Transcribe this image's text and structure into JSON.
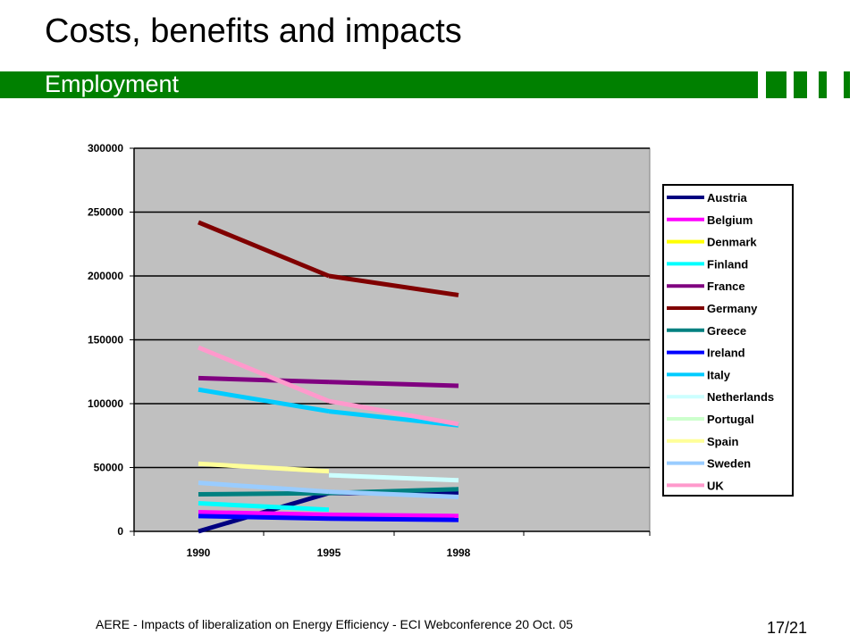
{
  "slide": {
    "title": "Costs, benefits and impacts",
    "subtitle": "Employment",
    "footer": "AERE - Impacts of liberalization on Energy Efficiency - ECI Webconference 20 Oct. 05",
    "page": "17/21",
    "accent_color": "#008000"
  },
  "chart_data": {
    "type": "line",
    "title": "",
    "xlabel": "",
    "ylabel": "",
    "categories": [
      "1990",
      "1995",
      "1998"
    ],
    "ylim": [
      0,
      300000
    ],
    "yticks": [
      "0",
      "50000",
      "100000",
      "150000",
      "200000",
      "250000",
      "300000"
    ],
    "grid": true,
    "legend_position": "right",
    "plot_background": "#c0c0c0",
    "series": [
      {
        "name": "Austria",
        "color": "#000080",
        "values": [
          0,
          30000,
          30000
        ]
      },
      {
        "name": "Belgium",
        "color": "#ff00ff",
        "values": [
          15000,
          13000,
          12000
        ]
      },
      {
        "name": "Denmark",
        "color": "#ffff00",
        "values": [
          null,
          null,
          null
        ]
      },
      {
        "name": "Finland",
        "color": "#00ffff",
        "values": [
          22000,
          17000,
          null
        ]
      },
      {
        "name": "France",
        "color": "#800080",
        "values": [
          120000,
          117000,
          114000
        ]
      },
      {
        "name": "Germany",
        "color": "#800000",
        "values": [
          242000,
          200000,
          185000
        ]
      },
      {
        "name": "Greece",
        "color": "#008080",
        "values": [
          29000,
          30000,
          33000
        ]
      },
      {
        "name": "Ireland",
        "color": "#0000ff",
        "values": [
          12000,
          10000,
          9000
        ]
      },
      {
        "name": "Italy",
        "color": "#00ccff",
        "values": [
          111000,
          94000,
          83000
        ]
      },
      {
        "name": "Netherlands",
        "color": "#ccffff",
        "values": [
          null,
          44000,
          40000
        ]
      },
      {
        "name": "Portugal",
        "color": "#ccffcc",
        "values": [
          null,
          null,
          null
        ]
      },
      {
        "name": "Spain",
        "color": "#ffff99",
        "values": [
          53000,
          47000,
          null
        ]
      },
      {
        "name": "Sweden",
        "color": "#99ccff",
        "values": [
          38000,
          31000,
          27000
        ]
      },
      {
        "name": "UK",
        "color": "#ff99cc",
        "values": [
          144000,
          102000,
          84000
        ]
      }
    ]
  }
}
